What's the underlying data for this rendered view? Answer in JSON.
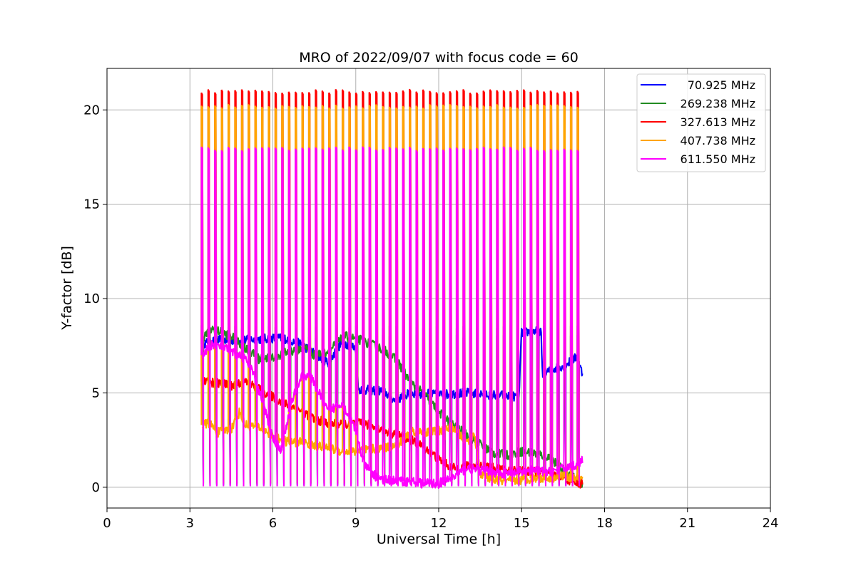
{
  "chart_data": {
    "type": "line",
    "title": "MRO of 2022/09/07 with focus code = 60",
    "xlabel": "Universal Time [h]",
    "ylabel": "Y-factor [dB]",
    "xlim": [
      0,
      24
    ],
    "ylim": [
      -1.1,
      22.2
    ],
    "xticks": [
      0,
      3,
      6,
      9,
      12,
      15,
      18,
      21,
      24
    ],
    "yticks": [
      0,
      5,
      10,
      15,
      20
    ],
    "grid": true,
    "legend_position": "top-right",
    "pulses": {
      "start": 3.45,
      "end": 17.05,
      "count": 57,
      "width": 0.07
    },
    "series": [
      {
        "name": " 70.925 MHz",
        "color": "#0000ff",
        "pulse_peak": 8.0,
        "pulse_trough": 0.1,
        "points": [
          [
            3.45,
            7.6
          ],
          [
            4.0,
            7.8
          ],
          [
            5.0,
            7.8
          ],
          [
            6.0,
            7.9
          ],
          [
            6.4,
            7.9
          ],
          [
            7.0,
            7.6
          ],
          [
            8.0,
            6.6
          ],
          [
            8.5,
            7.7
          ],
          [
            9.0,
            7.4
          ],
          [
            9.1,
            5.2
          ],
          [
            10.0,
            5.1
          ],
          [
            10.4,
            4.6
          ],
          [
            11.0,
            5.0
          ],
          [
            12.0,
            4.9
          ],
          [
            13.0,
            5.0
          ],
          [
            14.0,
            4.9
          ],
          [
            14.9,
            4.8
          ],
          [
            15.0,
            8.2
          ],
          [
            15.7,
            8.3
          ],
          [
            15.75,
            6.0
          ],
          [
            16.2,
            6.3
          ],
          [
            16.6,
            6.5
          ],
          [
            17.0,
            6.9
          ],
          [
            17.2,
            6.0
          ]
        ]
      },
      {
        "name": "269.238 MHz",
        "color": "#228b22",
        "pulse_peak": 8.5,
        "pulse_trough": 0.2,
        "points": [
          [
            3.45,
            7.9
          ],
          [
            3.8,
            8.4
          ],
          [
            4.5,
            8.0
          ],
          [
            5.0,
            7.4
          ],
          [
            5.5,
            6.8
          ],
          [
            6.0,
            6.9
          ],
          [
            6.6,
            7.2
          ],
          [
            7.2,
            7.4
          ],
          [
            7.5,
            7.0
          ],
          [
            8.0,
            7.2
          ],
          [
            8.6,
            8.0
          ],
          [
            9.2,
            7.8
          ],
          [
            10.0,
            7.3
          ],
          [
            10.5,
            6.7
          ],
          [
            11.0,
            5.5
          ],
          [
            11.5,
            4.9
          ],
          [
            12.0,
            4.0
          ],
          [
            12.5,
            3.3
          ],
          [
            13.0,
            2.8
          ],
          [
            13.5,
            2.3
          ],
          [
            14.0,
            1.8
          ],
          [
            14.5,
            1.7
          ],
          [
            15.0,
            1.9
          ],
          [
            15.5,
            1.8
          ],
          [
            16.0,
            1.6
          ],
          [
            16.5,
            0.9
          ],
          [
            17.0,
            0.4
          ],
          [
            17.2,
            0.1
          ]
        ]
      },
      {
        "name": "327.613 MHz",
        "color": "#ff0000",
        "pulse_peak": 21.0,
        "pulse_trough": 0.2,
        "points": [
          [
            3.45,
            5.6
          ],
          [
            4.0,
            5.5
          ],
          [
            4.5,
            5.4
          ],
          [
            5.0,
            5.6
          ],
          [
            5.5,
            5.2
          ],
          [
            6.0,
            4.8
          ],
          [
            6.5,
            4.4
          ],
          [
            7.0,
            4.1
          ],
          [
            7.5,
            3.6
          ],
          [
            8.0,
            3.4
          ],
          [
            8.5,
            3.3
          ],
          [
            9.0,
            3.4
          ],
          [
            9.5,
            3.3
          ],
          [
            10.0,
            3.0
          ],
          [
            10.5,
            2.8
          ],
          [
            11.0,
            2.5
          ],
          [
            11.5,
            2.1
          ],
          [
            12.0,
            1.5
          ],
          [
            12.5,
            1.0
          ],
          [
            13.0,
            1.1
          ],
          [
            13.5,
            1.2
          ],
          [
            14.0,
            1.0
          ],
          [
            14.5,
            0.9
          ],
          [
            15.0,
            0.9
          ],
          [
            15.5,
            0.8
          ],
          [
            16.0,
            0.7
          ],
          [
            16.5,
            0.5
          ],
          [
            17.0,
            0.2
          ],
          [
            17.2,
            0.2
          ]
        ]
      },
      {
        "name": "407.738 MHz",
        "color": "#ffa500",
        "pulse_peak": 20.2,
        "pulse_trough": 2.5,
        "points": [
          [
            3.45,
            3.3
          ],
          [
            3.7,
            3.4
          ],
          [
            4.0,
            2.9
          ],
          [
            4.5,
            3.1
          ],
          [
            4.8,
            4.0
          ],
          [
            5.0,
            3.3
          ],
          [
            5.5,
            3.2
          ],
          [
            6.0,
            2.7
          ],
          [
            6.5,
            2.4
          ],
          [
            7.0,
            2.4
          ],
          [
            7.5,
            2.2
          ],
          [
            8.0,
            2.1
          ],
          [
            8.5,
            1.9
          ],
          [
            9.0,
            1.9
          ],
          [
            9.5,
            2.0
          ],
          [
            10.0,
            2.1
          ],
          [
            10.5,
            2.2
          ],
          [
            11.0,
            3.0
          ],
          [
            11.5,
            2.9
          ],
          [
            12.0,
            3.0
          ],
          [
            12.5,
            3.2
          ],
          [
            13.0,
            2.4
          ],
          [
            13.3,
            2.8
          ],
          [
            13.5,
            0.7
          ],
          [
            14.0,
            0.4
          ],
          [
            14.5,
            0.3
          ],
          [
            15.0,
            0.4
          ],
          [
            15.5,
            0.5
          ],
          [
            16.0,
            0.5
          ],
          [
            16.5,
            0.6
          ],
          [
            17.0,
            0.5
          ],
          [
            17.2,
            0.4
          ]
        ]
      },
      {
        "name": "611.550 MHz",
        "color": "#ff00ff",
        "pulse_peak": 17.95,
        "pulse_trough": 0.05,
        "points": [
          [
            3.45,
            7.0
          ],
          [
            3.8,
            7.6
          ],
          [
            4.2,
            7.4
          ],
          [
            4.6,
            7.1
          ],
          [
            5.0,
            6.8
          ],
          [
            5.3,
            6.0
          ],
          [
            5.7,
            4.2
          ],
          [
            6.0,
            2.6
          ],
          [
            6.3,
            2.0
          ],
          [
            6.7,
            4.6
          ],
          [
            7.0,
            5.8
          ],
          [
            7.3,
            6.0
          ],
          [
            7.6,
            5.2
          ],
          [
            8.0,
            4.0
          ],
          [
            8.5,
            4.5
          ],
          [
            9.0,
            3.0
          ],
          [
            9.3,
            1.2
          ],
          [
            9.7,
            0.6
          ],
          [
            10.0,
            0.4
          ],
          [
            11.0,
            0.3
          ],
          [
            11.5,
            0.2
          ],
          [
            12.0,
            0.2
          ],
          [
            12.5,
            0.5
          ],
          [
            13.0,
            1.0
          ],
          [
            13.5,
            0.9
          ],
          [
            14.0,
            0.8
          ],
          [
            14.5,
            0.7
          ],
          [
            15.0,
            0.8
          ],
          [
            15.5,
            0.9
          ],
          [
            16.0,
            0.8
          ],
          [
            16.5,
            1.0
          ],
          [
            17.0,
            1.2
          ],
          [
            17.2,
            1.4
          ]
        ]
      }
    ]
  }
}
